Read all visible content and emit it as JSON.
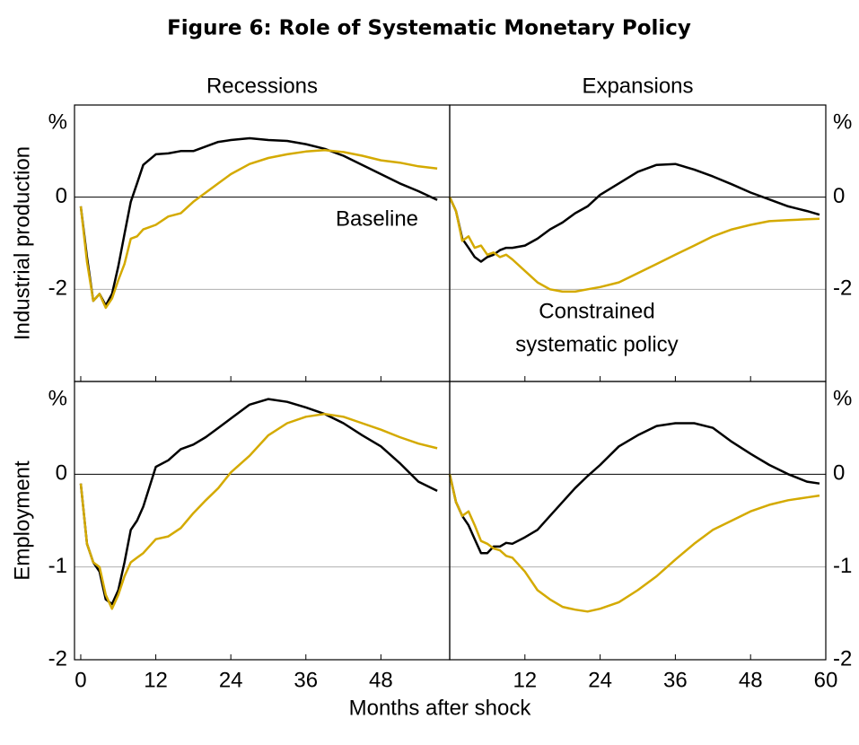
{
  "title": "Figure 6: Role of Systematic Monetary Policy",
  "xlabel": "Months after shock",
  "chart_data": [
    {
      "type": "line",
      "title": "Recessions",
      "ylabel": "Industrial production",
      "y_unit": "%",
      "annotations": [
        "Baseline"
      ],
      "x": [
        0,
        1,
        2,
        3,
        4,
        5,
        6,
        7,
        8,
        9,
        10,
        12,
        14,
        16,
        18,
        20,
        22,
        24,
        27,
        30,
        33,
        36,
        39,
        42,
        45,
        48,
        51,
        54,
        57
      ],
      "xlim": [
        -1,
        59
      ],
      "xticks": [
        0,
        12,
        24,
        36,
        48
      ],
      "ylim": [
        -4,
        2
      ],
      "yticks": [
        -2,
        0
      ],
      "series": [
        {
          "color": "#000000",
          "values": [
            -0.2,
            -1.3,
            -2.25,
            -2.1,
            -2.35,
            -2.1,
            -1.5,
            -0.8,
            -0.1,
            0.3,
            0.7,
            0.93,
            0.95,
            1.0,
            1.0,
            1.1,
            1.2,
            1.24,
            1.28,
            1.24,
            1.22,
            1.15,
            1.05,
            0.9,
            0.7,
            0.5,
            0.3,
            0.13,
            -0.06
          ]
        },
        {
          "color": "#d4aa00",
          "values": [
            -0.2,
            -1.4,
            -2.25,
            -2.1,
            -2.4,
            -2.2,
            -1.8,
            -1.45,
            -0.9,
            -0.85,
            -0.7,
            -0.6,
            -0.42,
            -0.35,
            -0.1,
            0.1,
            0.3,
            0.5,
            0.72,
            0.85,
            0.93,
            0.99,
            1.02,
            0.98,
            0.9,
            0.8,
            0.75,
            0.67,
            0.62
          ]
        }
      ]
    },
    {
      "type": "line",
      "title": "Expansions",
      "y_unit": "%",
      "annotations": [
        "Constrained",
        "systematic policy"
      ],
      "x": [
        0,
        1,
        2,
        3,
        4,
        5,
        6,
        7,
        8,
        9,
        10,
        12,
        14,
        16,
        18,
        20,
        22,
        24,
        27,
        30,
        33,
        36,
        39,
        42,
        45,
        48,
        51,
        54,
        57,
        59
      ],
      "xlim": [
        0,
        60
      ],
      "xticks": [
        12,
        24,
        36,
        48,
        60
      ],
      "ylim": [
        -4,
        2
      ],
      "yticks": [
        -2,
        0
      ],
      "series": [
        {
          "color": "#000000",
          "values": [
            0,
            -0.3,
            -0.9,
            -1.1,
            -1.3,
            -1.4,
            -1.3,
            -1.25,
            -1.15,
            -1.1,
            -1.1,
            -1.05,
            -0.9,
            -0.7,
            -0.55,
            -0.35,
            -0.2,
            0.05,
            0.3,
            0.55,
            0.7,
            0.72,
            0.6,
            0.45,
            0.28,
            0.1,
            -0.05,
            -0.2,
            -0.3,
            -0.38
          ]
        },
        {
          "color": "#d4aa00",
          "values": [
            0,
            -0.3,
            -0.95,
            -0.85,
            -1.1,
            -1.05,
            -1.25,
            -1.2,
            -1.3,
            -1.25,
            -1.35,
            -1.6,
            -1.85,
            -2.0,
            -2.05,
            -2.05,
            -2.0,
            -1.95,
            -1.85,
            -1.65,
            -1.45,
            -1.25,
            -1.05,
            -0.85,
            -0.7,
            -0.6,
            -0.52,
            -0.5,
            -0.48,
            -0.47
          ]
        }
      ]
    },
    {
      "type": "line",
      "ylabel": "Employment",
      "y_unit": "%",
      "x": [
        0,
        1,
        2,
        3,
        4,
        5,
        6,
        7,
        8,
        9,
        10,
        12,
        14,
        16,
        18,
        20,
        22,
        24,
        27,
        30,
        33,
        36,
        39,
        42,
        45,
        48,
        51,
        54,
        57
      ],
      "xlim": [
        -1,
        59
      ],
      "xticks": [
        0,
        12,
        24,
        36,
        48
      ],
      "ylim": [
        -2,
        1
      ],
      "yticks": [
        -2,
        -1,
        0
      ],
      "series": [
        {
          "color": "#000000",
          "values": [
            -0.1,
            -0.75,
            -0.95,
            -1.05,
            -1.35,
            -1.4,
            -1.25,
            -0.95,
            -0.6,
            -0.5,
            -0.35,
            0.08,
            0.15,
            0.27,
            0.32,
            0.4,
            0.5,
            0.6,
            0.75,
            0.81,
            0.78,
            0.72,
            0.65,
            0.55,
            0.42,
            0.3,
            0.12,
            -0.08,
            -0.18
          ]
        },
        {
          "color": "#d4aa00",
          "values": [
            -0.1,
            -0.75,
            -0.95,
            -1.0,
            -1.3,
            -1.45,
            -1.3,
            -1.1,
            -0.95,
            -0.9,
            -0.85,
            -0.7,
            -0.67,
            -0.58,
            -0.42,
            -0.28,
            -0.15,
            0.02,
            0.2,
            0.42,
            0.55,
            0.62,
            0.65,
            0.62,
            0.55,
            0.48,
            0.4,
            0.33,
            0.28
          ]
        }
      ]
    },
    {
      "type": "line",
      "y_unit": "%",
      "x": [
        0,
        1,
        2,
        3,
        4,
        5,
        6,
        7,
        8,
        9,
        10,
        12,
        14,
        16,
        18,
        20,
        22,
        24,
        27,
        30,
        33,
        36,
        39,
        42,
        45,
        48,
        51,
        54,
        57,
        59
      ],
      "xlim": [
        0,
        60
      ],
      "xticks": [
        12,
        24,
        36,
        48,
        60
      ],
      "ylim": [
        -2,
        1
      ],
      "yticks": [
        -2,
        -1,
        0
      ],
      "series": [
        {
          "color": "#000000",
          "values": [
            0,
            -0.3,
            -0.45,
            -0.55,
            -0.7,
            -0.85,
            -0.85,
            -0.78,
            -0.78,
            -0.74,
            -0.75,
            -0.68,
            -0.6,
            -0.45,
            -0.3,
            -0.15,
            -0.02,
            0.1,
            0.3,
            0.42,
            0.52,
            0.55,
            0.55,
            0.5,
            0.35,
            0.22,
            0.1,
            0.0,
            -0.08,
            -0.1
          ]
        },
        {
          "color": "#d4aa00",
          "values": [
            0,
            -0.3,
            -0.45,
            -0.4,
            -0.55,
            -0.72,
            -0.75,
            -0.8,
            -0.82,
            -0.88,
            -0.9,
            -1.05,
            -1.25,
            -1.35,
            -1.43,
            -1.46,
            -1.48,
            -1.45,
            -1.38,
            -1.25,
            -1.1,
            -0.92,
            -0.75,
            -0.6,
            -0.5,
            -0.4,
            -0.33,
            -0.28,
            -0.25,
            -0.23
          ]
        }
      ]
    }
  ]
}
